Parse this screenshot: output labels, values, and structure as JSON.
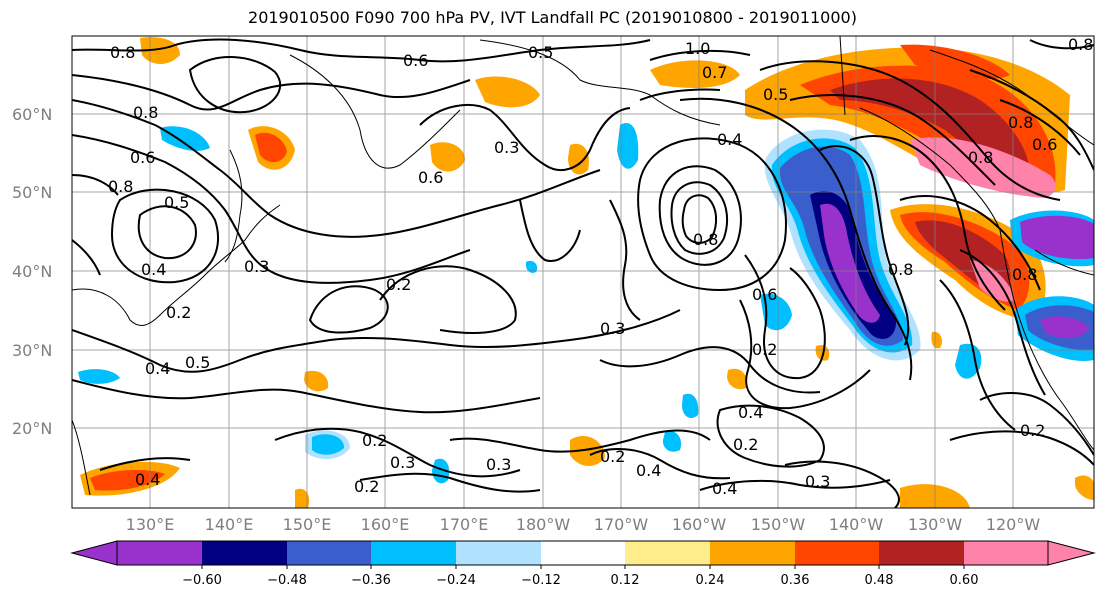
{
  "figure": {
    "title": "2019010500 F090 700 hPa PV, IVT Landfall PC (2019010800 - 2019011000)"
  },
  "map": {
    "lat_labels": [
      "60°N",
      "50°N",
      "40°N",
      "30°N",
      "20°N"
    ],
    "lon_labels": [
      "130°E",
      "140°E",
      "150°E",
      "160°E",
      "170°E",
      "180°W",
      "170°W",
      "160°W",
      "150°W",
      "140°W",
      "130°W",
      "120°W"
    ],
    "contour_labels": [
      "0.8",
      "0.6",
      "1.0",
      "0.7",
      "0.5",
      "0.8",
      "0.6",
      "0.3",
      "0.4",
      "0.3",
      "0.2",
      "0.3",
      "0.2",
      "0.3",
      "0.2",
      "0.4",
      "0.2",
      "0.4",
      "0.3",
      "0.2",
      "0.4",
      "0.6",
      "0.8",
      "0.8",
      "0.5",
      "0.8",
      "0.6",
      "0.8",
      "0.8",
      "0.4",
      "0.8",
      "0.6",
      "0.8",
      "0.5",
      "0.4",
      "0.5",
      "0.4",
      "0.2",
      "0.3",
      "0.2",
      "0.2"
    ]
  },
  "colorbar": {
    "ticks": [
      "−0.60",
      "−0.48",
      "−0.36",
      "−0.24",
      "−0.12",
      "0.12",
      "0.24",
      "0.36",
      "0.48",
      "0.60"
    ],
    "colors": [
      "#9932cc",
      "#000080",
      "#3a5fcd",
      "#00bfff",
      "#b0e2ff",
      "#ffffff",
      "#ffec8b",
      "#ffa500",
      "#ff4500",
      "#b22222",
      "#ff82ab",
      "#ff82ab"
    ]
  }
}
